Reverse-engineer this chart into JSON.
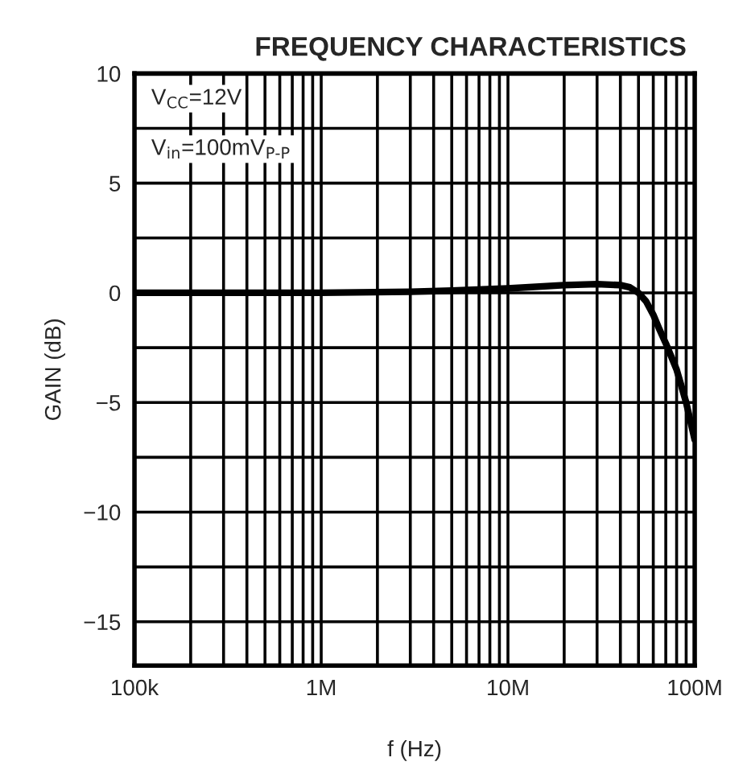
{
  "chart_data": {
    "type": "line",
    "title": "FREQUENCY CHARACTERISTICS",
    "xlabel": "f (Hz)",
    "ylabel": "GAIN (dB)",
    "annotations": [
      "V$_{CC}$=12V",
      "V$_{in}$=100mV$_{P-P}$"
    ],
    "log": "x",
    "grid": true,
    "marker": "none",
    "line_style": "solid",
    "xlim": [
      100000,
      100000000
    ],
    "ylim": [
      -17,
      10
    ],
    "xticks": [
      {
        "value": 100000,
        "label": "100k"
      },
      {
        "value": 200000,
        "label": null
      },
      {
        "value": 300000,
        "label": null
      },
      {
        "value": 400000,
        "label": null
      },
      {
        "value": 500000,
        "label": null
      },
      {
        "value": 600000,
        "label": null
      },
      {
        "value": 700000,
        "label": null
      },
      {
        "value": 800000,
        "label": null
      },
      {
        "value": 900000,
        "label": null
      },
      {
        "value": 1000000,
        "label": "1M"
      },
      {
        "value": 2000000,
        "label": null
      },
      {
        "value": 3000000,
        "label": null
      },
      {
        "value": 4000000,
        "label": null
      },
      {
        "value": 5000000,
        "label": null
      },
      {
        "value": 6000000,
        "label": null
      },
      {
        "value": 7000000,
        "label": null
      },
      {
        "value": 8000000,
        "label": null
      },
      {
        "value": 9000000,
        "label": null
      },
      {
        "value": 10000000,
        "label": "10M"
      },
      {
        "value": 20000000,
        "label": null
      },
      {
        "value": 30000000,
        "label": null
      },
      {
        "value": 40000000,
        "label": null
      },
      {
        "value": 50000000,
        "label": null
      },
      {
        "value": 60000000,
        "label": null
      },
      {
        "value": 70000000,
        "label": null
      },
      {
        "value": 80000000,
        "label": null
      },
      {
        "value": 90000000,
        "label": null
      },
      {
        "value": 100000000,
        "label": "100M"
      }
    ],
    "yticks": [
      10,
      {
        "value": 7.5,
        "label": null
      },
      5,
      {
        "value": 2.5,
        "label": null
      },
      0,
      {
        "value": -2.5,
        "label": null
      },
      {
        "value": -5,
        "label": "−5"
      },
      {
        "value": -7.5,
        "label": null
      },
      {
        "value": -10,
        "label": "−10"
      },
      {
        "value": -12.5,
        "label": null
      },
      {
        "value": -15,
        "label": "−15"
      }
    ],
    "series": [
      {
        "color": "#000000",
        "x": [
          100000,
          300000,
          1000000,
          3000000,
          5000000,
          10000000,
          20000000,
          30000000,
          40000000,
          45000000,
          50000000,
          55000000,
          60000000,
          65000000,
          70000000,
          80000000,
          90000000,
          100000000
        ],
        "values": [
          0,
          0,
          0,
          0.05,
          0.1,
          0.2,
          0.35,
          0.4,
          0.35,
          0.25,
          0.0,
          -0.4,
          -1.0,
          -1.7,
          -2.3,
          -3.5,
          -5.0,
          -6.7
        ]
      }
    ]
  }
}
